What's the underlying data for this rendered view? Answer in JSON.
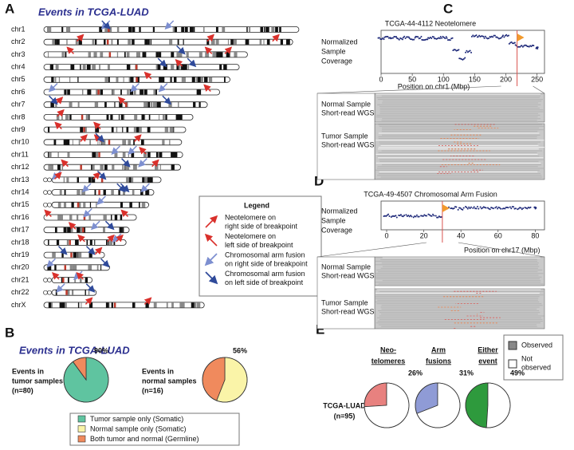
{
  "panel_a": {
    "letter": "A",
    "title": "Events in TCGA-LUAD",
    "chromosomes": [
      "chr1",
      "chr2",
      "chr3",
      "chr4",
      "chr5",
      "chr6",
      "chr7",
      "chr8",
      "chr9",
      "chr10",
      "chr11",
      "chr12",
      "chr13",
      "chr14",
      "chr15",
      "chr16",
      "chr17",
      "chr18",
      "chr19",
      "chr20",
      "chr21",
      "chr22",
      "chrX"
    ],
    "legend": {
      "title": "Legend",
      "items": [
        [
          "Neotelomere on",
          "right side of breakpoint"
        ],
        [
          "Neotelomere on",
          "left side of breakpoint"
        ],
        [
          "Chromosomal arm fusion",
          "on right side of breakpoint"
        ],
        [
          "Chromosomal arm fusion",
          "on left side of breakpoint"
        ]
      ]
    }
  },
  "panel_b": {
    "letter": "B",
    "title": "Events in TCGA-LUAD",
    "legend": [
      "Tumor sample only (Somatic)",
      "Normal sample only (Somatic)",
      "Both tumor and normal (Germline)"
    ]
  },
  "panel_c": {
    "letter": "C",
    "normal_label": [
      "Normal Sample",
      "Short-read WGS"
    ],
    "tumor_label": [
      "Tumor Sample",
      "Short-read WGS"
    ]
  },
  "panel_d": {
    "letter": "D",
    "normal_label": [
      "Normal Sample",
      "Short-read WGS"
    ],
    "tumor_label": [
      "Tumor Sample",
      "Short-read WGS"
    ]
  },
  "panel_e": {
    "letter": "E",
    "row_label": [
      "TCGA-LUAD",
      "(n=95)"
    ],
    "legend": [
      [
        "Observed"
      ],
      [
        "Not",
        "observed"
      ]
    ]
  },
  "chart_data": [
    {
      "type": "pie",
      "label": [
        "Events in",
        "tumor samples",
        "(n=80)"
      ],
      "values": [
        90,
        0,
        10
      ],
      "value_labels": [
        "90%",
        null,
        null
      ],
      "label_color": "#2fa37a",
      "colors": [
        "#5fc4a0",
        "#faf4a8",
        "#f08a5d"
      ],
      "clockwise": true
    },
    {
      "type": "pie",
      "label": [
        "Events in",
        "normal samples",
        "(n=16)"
      ],
      "values": [
        0,
        56,
        44
      ],
      "value_labels": [
        null,
        "56%",
        null
      ],
      "label_color": "#8a8a5a",
      "colors": [
        "#5fc4a0",
        "#faf4a8",
        "#f08a5d"
      ],
      "clockwise": true
    },
    {
      "type": "scatter",
      "title": "TCGA-44-4112 Neotelomere",
      "ylabel": [
        "Normalized",
        "Sample",
        "Coverage"
      ],
      "xlabel": "Position on chr1 (Mbp)",
      "x": [
        0,
        10,
        20,
        30,
        40,
        50,
        60,
        70,
        80,
        90,
        100,
        110,
        120,
        130,
        140,
        150,
        160,
        170,
        180,
        190,
        200,
        210,
        220,
        230,
        240,
        250
      ],
      "values": [
        2.4,
        2.5,
        2.5,
        2.4,
        2.5,
        2.4,
        2.5,
        2.4,
        2.5,
        2.4,
        2.5,
        2.4,
        1.6,
        1.0,
        1.5,
        2.6,
        2.6,
        2.5,
        2.6,
        2.5,
        2.6,
        2.1,
        1.9,
        1.9,
        1.9,
        1.8
      ],
      "color": "#1f2a7a",
      "xlim": [
        0,
        262
      ],
      "xticks": [
        0,
        50,
        100,
        150,
        200,
        250
      ],
      "ylim": [
        0,
        3
      ],
      "breakpoint": 218,
      "breakpoint_color": "#d9534f",
      "marker_color": "#f29a2e"
    },
    {
      "type": "scatter",
      "title": "TCGA-49-4507 Chromosomal Arm Fusion",
      "ylabel": [
        "Normalized",
        "Sample",
        "Coverage"
      ],
      "xlabel": "Position on chr17 (Mbp)",
      "x": [
        0,
        4,
        8,
        12,
        16,
        20,
        24,
        28,
        32,
        36,
        40,
        44,
        48,
        52,
        56,
        60,
        64,
        68,
        72,
        76,
        80
      ],
      "values": [
        1.5,
        1.4,
        1.5,
        1.5,
        1.4,
        1.5,
        1.5,
        1.4,
        2.3,
        2.3,
        2.2,
        2.3,
        2.3,
        2.3,
        2.2,
        2.3,
        2.3,
        2.3,
        2.2,
        2.3,
        2.3
      ],
      "color": "#1f2a7a",
      "xlim": [
        -3,
        85
      ],
      "xticks": [
        0,
        20,
        40,
        60,
        80
      ],
      "ylim": [
        0,
        3
      ],
      "breakpoint": 30,
      "breakpoint_color": "#d9534f",
      "marker_color": "#f29a2e"
    },
    {
      "type": "pie",
      "title": [
        "Neo-",
        "telomeres"
      ],
      "values": [
        26,
        74
      ],
      "value_labels": [
        "26%",
        null
      ],
      "label_color": "#c0392b",
      "colors": [
        "#e8817f",
        "#ffffff"
      ],
      "clockwise": false
    },
    {
      "type": "pie",
      "title": [
        "Arm",
        "fusions"
      ],
      "values": [
        31,
        69
      ],
      "value_labels": [
        "31%",
        null
      ],
      "label_color": "#2b3f9f",
      "colors": [
        "#8f9bd6",
        "#ffffff"
      ],
      "clockwise": false
    },
    {
      "type": "pie",
      "title": [
        "Either",
        "event"
      ],
      "values": [
        49,
        51
      ],
      "value_labels": [
        "49%",
        null
      ],
      "label_color": "#2e9a3d",
      "colors": [
        "#2e9a3d",
        "#ffffff"
      ],
      "clockwise": false
    }
  ]
}
